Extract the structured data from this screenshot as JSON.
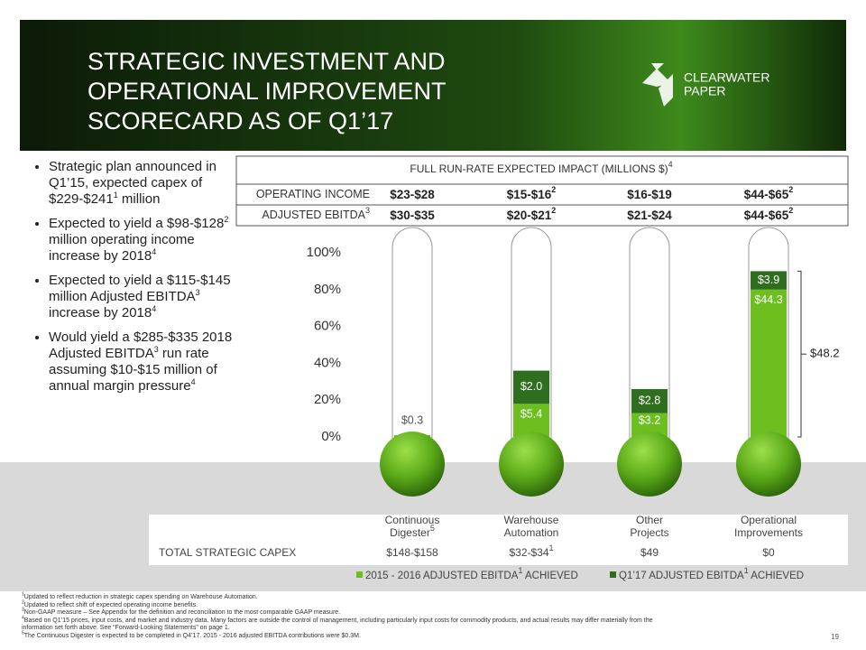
{
  "header": {
    "title_lines": [
      "STRATEGIC INVESTMENT AND",
      "OPERATIONAL IMPROVEMENT",
      "SCORECARD AS OF Q1’17"
    ],
    "logo_lines": [
      "CLEARWATER",
      "PAPER"
    ]
  },
  "bullets": [
    [
      {
        "text": "Strategic plan announced in Q1’15, expected capex of $229-$241"
      },
      {
        "sup": "1"
      },
      {
        "text": " million"
      }
    ],
    [
      {
        "text": "Expected to yield a $98-$128"
      },
      {
        "sup": "2"
      },
      {
        "text": " million operating income increase by 2018"
      },
      {
        "sup": "4"
      }
    ],
    [
      {
        "text": "Expected to yield a $115-$145 million Adjusted EBITDA"
      },
      {
        "sup": "3"
      },
      {
        "text": " increase by 2018"
      },
      {
        "sup": "4"
      }
    ],
    [
      {
        "text": "Would yield a $285-$335 2018 Adjusted EBITDA"
      },
      {
        "sup": "3"
      },
      {
        "text": " run rate assuming $10-$15 million of annual margin pressure"
      },
      {
        "sup": "4"
      }
    ]
  ],
  "impact_table": {
    "title": {
      "text": "FULL RUN-RATE EXPECTED IMPACT (MILLIONS $)",
      "sup": "4"
    },
    "rows": [
      {
        "label": {
          "text": "OPERATING INCOME"
        },
        "cells": [
          {
            "text": "$23-$28"
          },
          {
            "text": "$15-$16",
            "sup": "2"
          },
          {
            "text": "$16-$19"
          },
          {
            "text": "$44-$65",
            "sup": "2"
          }
        ]
      },
      {
        "label": {
          "text": "ADJUSTED EBITDA",
          "sup": "3"
        },
        "cells": [
          {
            "text": "$30-$35"
          },
          {
            "text": "$20-$21",
            "sup": "2"
          },
          {
            "text": "$21-$24"
          },
          {
            "text": "$44-$65",
            "sup": "2"
          }
        ]
      }
    ]
  },
  "chart_data": {
    "type": "thermometer",
    "categories": [
      {
        "line1": "Continuous",
        "line2": "Digester",
        "sup": "5"
      },
      {
        "line1": "Warehouse",
        "line2": "Automation"
      },
      {
        "line1": "Other",
        "line2": "Projects"
      },
      {
        "line1": "Operational",
        "line2": "Improvements"
      }
    ],
    "ylim": [
      0,
      100
    ],
    "yticks": [
      {
        "value": 0,
        "label": "0%"
      },
      {
        "value": 20,
        "label": "20%"
      },
      {
        "value": 40,
        "label": "40%"
      },
      {
        "value": 60,
        "label": "60%"
      },
      {
        "value": 80,
        "label": "80%"
      },
      {
        "value": 100,
        "label": "100%"
      }
    ],
    "series": [
      {
        "name": "2015 - 2016 ADJUSTED EBITDA",
        "name_sup": "1",
        "name_suffix": " ACHIEVED",
        "color": "#6cbf1f",
        "values": [
          1,
          18,
          13,
          80
        ],
        "labels": [
          "$0.3",
          "$5.4",
          "$3.2",
          "$44.3"
        ]
      },
      {
        "name": "Q1’17 ADJUSTED EBITDA",
        "name_sup": "1",
        "name_suffix": " ACHIEVED",
        "color": "#2f6e1e",
        "values": [
          0,
          18,
          13,
          10
        ],
        "labels": [
          null,
          "$2.0",
          "$2.8",
          "$3.9"
        ]
      }
    ],
    "bracket_label": "$48.2"
  },
  "capex": {
    "label": "TOTAL STRATEGIC CAPEX",
    "cells": [
      {
        "text": "$148-$158"
      },
      {
        "text": "$32-$34",
        "sup": "1"
      },
      {
        "text": "$49"
      },
      {
        "text": "$0"
      }
    ]
  },
  "footnotes": [
    {
      "sup": "1",
      "text": "Updated to reflect reduction in strategic capex spending on Warehouse Automation."
    },
    {
      "sup": "2",
      "text": "Updated to reflect shift of expected operating income benefits."
    },
    {
      "sup": "3",
      "text": "Non-GAAP measure – See Appendix for the definition and reconciliation to the most comparable GAAP measure."
    },
    {
      "sup": "4",
      "text": "Based on Q1’15 prices, input costs, and market and industry data. Many factors are outside the control of management, including particularly input costs for commodity products, and actual results may differ materially from the information set forth above. See “Forward-Looking Statements” on page 1."
    },
    {
      "sup": "5",
      "text": "The Continuous Digester is expected to be completed in Q4’17. 2015 - 2016 adjusted EBITDA contributions were $0.3M."
    }
  ],
  "page_number": "19"
}
